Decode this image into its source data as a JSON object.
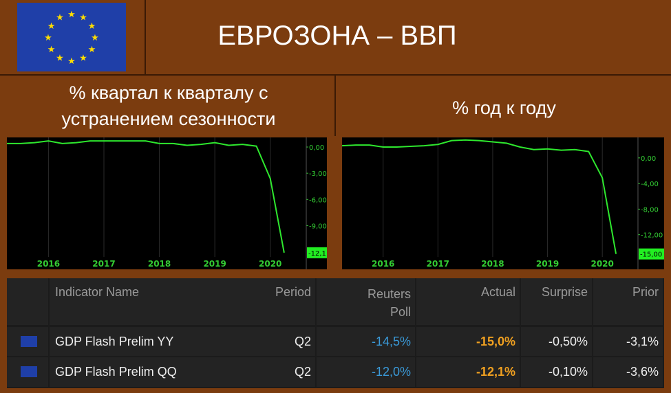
{
  "header": {
    "title": "ЕВРОЗОНА – ВВП"
  },
  "panels": [
    {
      "subtitle": "% квартал к кварталу с устранением сезонности"
    },
    {
      "subtitle": "% год к году"
    }
  ],
  "chart_data": [
    {
      "type": "line",
      "x": [
        2015.25,
        2015.5,
        2015.75,
        2016,
        2016.25,
        2016.5,
        2016.75,
        2017,
        2017.25,
        2017.5,
        2017.75,
        2018,
        2018.25,
        2018.5,
        2018.75,
        2019,
        2019.25,
        2019.5,
        2019.75,
        2020,
        2020.25
      ],
      "series": [
        {
          "color": "#2ee82e",
          "values": [
            0.4,
            0.4,
            0.5,
            0.7,
            0.4,
            0.5,
            0.7,
            0.7,
            0.7,
            0.7,
            0.7,
            0.4,
            0.4,
            0.2,
            0.3,
            0.5,
            0.2,
            0.3,
            0.1,
            -3.6,
            -12.1
          ]
        }
      ],
      "xlim": [
        2015.25,
        2020.5
      ],
      "xticks": [
        2016,
        2017,
        2018,
        2019,
        2020
      ],
      "ylim": [
        -14,
        1.1
      ],
      "yticks": [
        {
          "value": 0,
          "label": "0,00"
        },
        {
          "value": -3,
          "label": "-3,00"
        },
        {
          "value": -6,
          "label": "-6,00"
        },
        {
          "value": -9,
          "label": "-9,00"
        }
      ],
      "last_label": {
        "value": -12.1,
        "label": "-12,1"
      }
    },
    {
      "type": "line",
      "x": [
        2015.25,
        2015.5,
        2015.75,
        2016,
        2016.25,
        2016.5,
        2016.75,
        2017,
        2017.25,
        2017.5,
        2017.75,
        2018,
        2018.25,
        2018.5,
        2018.75,
        2019,
        2019.25,
        2019.5,
        2019.75,
        2020,
        2020.25
      ],
      "series": [
        {
          "color": "#2ee82e",
          "values": [
            1.9,
            2.0,
            2.0,
            1.7,
            1.7,
            1.8,
            1.9,
            2.1,
            2.7,
            2.8,
            2.7,
            2.5,
            2.3,
            1.7,
            1.3,
            1.4,
            1.2,
            1.3,
            1.0,
            -3.1,
            -15.0
          ]
        }
      ],
      "xlim": [
        2015.25,
        2020.5
      ],
      "xticks": [
        2016,
        2017,
        2018,
        2019,
        2020
      ],
      "ylim": [
        -17.4,
        3.2
      ],
      "yticks": [
        {
          "value": 0,
          "label": "0,00"
        },
        {
          "value": -4,
          "label": "-4,00"
        },
        {
          "value": -8,
          "label": "-8,00"
        },
        {
          "value": -12,
          "label": "-12,00"
        }
      ],
      "last_label": {
        "value": -15,
        "label": "-15,00"
      }
    }
  ],
  "table": {
    "columns": [
      "Indicator Name",
      "Period",
      "Reuters Poll",
      "Actual",
      "Surprise",
      "Prior"
    ],
    "rows": [
      [
        "GDP Flash Prelim YY",
        "Q2",
        "-14,5%",
        "-15,0%",
        "-0,50%",
        "-3,1%"
      ],
      [
        "GDP Flash Prelim QQ",
        "Q2",
        "-12,0%",
        "-12,1%",
        "-0,10%",
        "-3,6%"
      ]
    ]
  }
}
